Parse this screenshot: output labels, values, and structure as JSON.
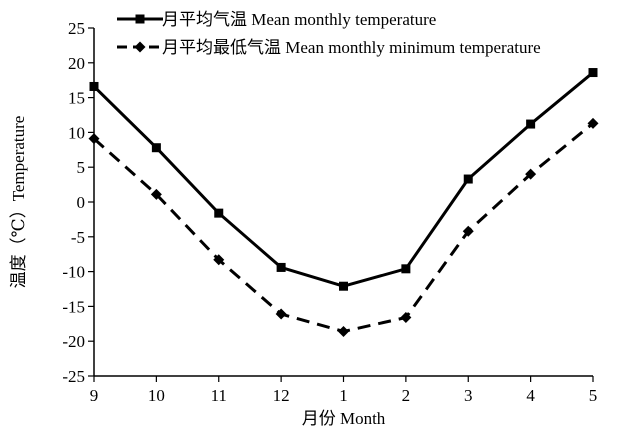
{
  "chart_data": {
    "type": "line",
    "categories": [
      "9",
      "10",
      "11",
      "12",
      "1",
      "2",
      "3",
      "4",
      "5"
    ],
    "series": [
      {
        "name": "月平均气温 Mean monthly temperature",
        "values": [
          16.6,
          7.8,
          -1.6,
          -9.4,
          -12.1,
          -9.6,
          3.3,
          11.2,
          18.6
        ],
        "line_style": "solid",
        "marker": "square",
        "color": "#000000"
      },
      {
        "name": "月平均最低气温 Mean monthly minimum temperature",
        "values": [
          9.1,
          1.1,
          -8.3,
          -16.1,
          -18.6,
          -16.6,
          -4.2,
          4.0,
          11.3
        ],
        "line_style": "dashed",
        "marker": "diamond",
        "color": "#000000"
      }
    ],
    "ylim": [
      -25,
      25
    ],
    "yticks": [
      "-25",
      "-20",
      "-15",
      "-10",
      "-5",
      "0",
      "5",
      "10",
      "15",
      "20",
      "25"
    ],
    "xlabel": "月份 Month",
    "ylabel": "温度（℃）Temperature",
    "grid": false,
    "legend_position": "top"
  }
}
